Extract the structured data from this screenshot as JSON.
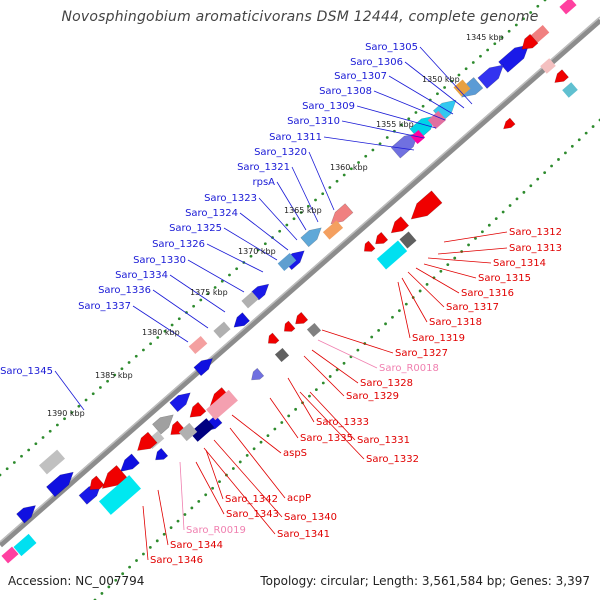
{
  "title": "Novosphingobium aromaticivorans DSM 12444, complete genome",
  "footer": {
    "accession": "Accession: NC_007794",
    "topology": "Topology: circular; Length: 3,561,584 bp; Genes: 3,397"
  },
  "colors": {
    "forward_label": "#1a1ad6",
    "reverse_label": "#e00000",
    "rna_label": "#f080b0",
    "backbone": "#8c8c8c",
    "tick_dots": "#2e8b2e",
    "gene_blue": "#1010e0",
    "gene_red": "#f00000",
    "gene_cyan": "#00e0f0",
    "gene_gray": "#a0a0a0"
  },
  "kbp_markers": [
    "1345 kbp",
    "1350 kbp",
    "1355 kbp",
    "1360 kbp",
    "1365 kbp",
    "1370 kbp",
    "1375 kbp",
    "1380 kbp",
    "1385 kbp",
    "1390 kbp"
  ],
  "forward_genes": [
    "Saro_1305",
    "Saro_1306",
    "Saro_1307",
    "Saro_1308",
    "Saro_1309",
    "Saro_1310",
    "Saro_1311",
    "Saro_1320",
    "Saro_1321",
    "rpsA",
    "Saro_1323",
    "Saro_1324",
    "Saro_1325",
    "Saro_1326",
    "Saro_1330",
    "Saro_1334",
    "Saro_1336",
    "Saro_1337",
    "Saro_1345"
  ],
  "reverse_genes": [
    "Saro_1312",
    "Saro_1313",
    "Saro_1314",
    "Saro_1315",
    "Saro_1316",
    "Saro_1317",
    "Saro_1318",
    "Saro_1319",
    "Saro_1327",
    "Saro_R0018",
    "Saro_1328",
    "Saro_1329",
    "Saro_1333",
    "Saro_1335",
    "Saro_1331",
    "Saro_1332",
    "aspS",
    "acpP",
    "Saro_1342",
    "Saro_1340",
    "Saro_1343",
    "Saro_1341",
    "Saro_R0019",
    "Saro_1344",
    "Saro_1346"
  ]
}
